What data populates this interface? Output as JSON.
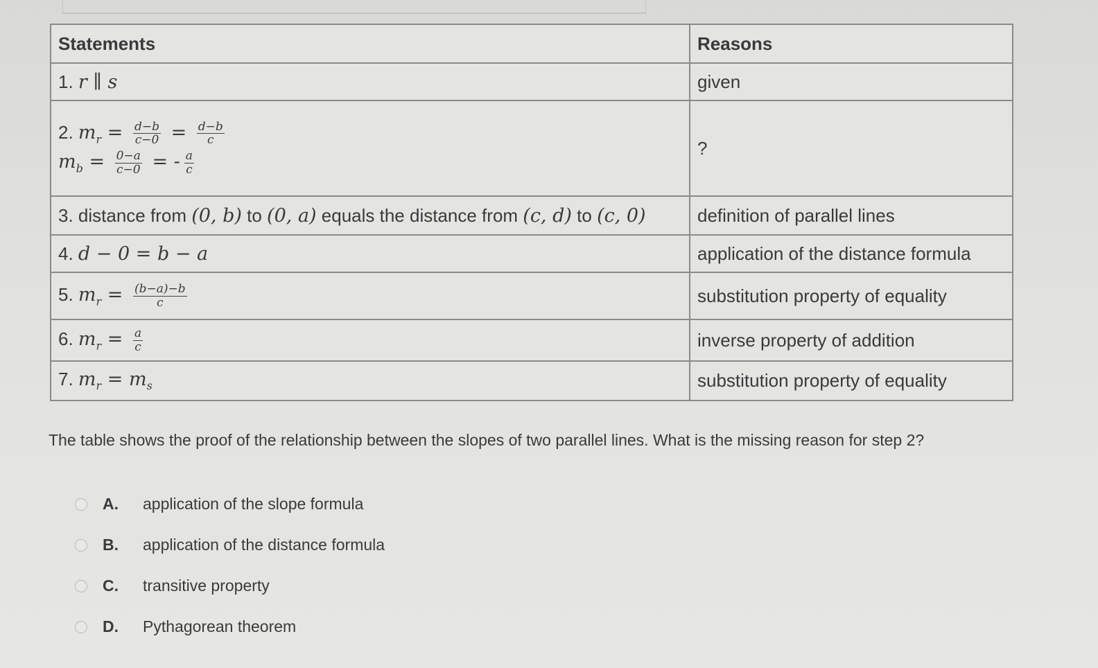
{
  "table": {
    "headers": {
      "statements": "Statements",
      "reasons": "Reasons"
    },
    "rows": [
      {
        "lines": [
          [
            {
              "t": "1. "
            },
            {
              "m": "r ∥ s"
            }
          ]
        ],
        "reason": "given"
      },
      {
        "lines": [
          [
            {
              "t": "2. "
            },
            {
              "m": "m"
            },
            {
              "sub": "r"
            },
            {
              "m": " = "
            },
            {
              "num": "d−b",
              "den": "c−0"
            },
            {
              "m": " = "
            },
            {
              "num": "d−b",
              "den": "c"
            }
          ],
          [
            {
              "m": "m"
            },
            {
              "sub": "b"
            },
            {
              "m": " = "
            },
            {
              "num": "0−a",
              "den": "c−0"
            },
            {
              "m": " = -"
            },
            {
              "num": "a",
              "den": "c"
            }
          ]
        ],
        "reason": "?"
      },
      {
        "lines": [
          [
            {
              "t": "3. distance from "
            },
            {
              "m": "(0, b)"
            },
            {
              "t": " to "
            },
            {
              "m": "(0, a)"
            },
            {
              "t": " equals the distance from "
            },
            {
              "m": "(c, d)"
            },
            {
              "t": " to "
            },
            {
              "m": "(c, 0)"
            }
          ]
        ],
        "reason": "definition of parallel lines"
      },
      {
        "lines": [
          [
            {
              "t": "4. "
            },
            {
              "m": "d − 0 = b − a"
            }
          ]
        ],
        "reason": "application of the distance formula"
      },
      {
        "lines": [
          [
            {
              "t": "5. "
            },
            {
              "m": "m"
            },
            {
              "sub": "r"
            },
            {
              "m": " = "
            },
            {
              "num": "(b−a)−b",
              "den": "c"
            }
          ]
        ],
        "reason": "substitution property of equality"
      },
      {
        "lines": [
          [
            {
              "t": "6. "
            },
            {
              "m": "m"
            },
            {
              "sub": "r"
            },
            {
              "m": " = "
            },
            {
              "num": "a",
              "den": "c"
            }
          ]
        ],
        "reason": "inverse property of addition"
      },
      {
        "lines": [
          [
            {
              "t": "7. "
            },
            {
              "m": "m"
            },
            {
              "sub": "r"
            },
            {
              "m": " = m"
            },
            {
              "sub": "s"
            }
          ]
        ],
        "reason": "substitution property of equality"
      }
    ]
  },
  "question": "The table shows the proof of the relationship between the slopes of two parallel lines. What is the missing reason for step 2?",
  "choices": [
    {
      "letter": "A.",
      "text": "application of the slope formula"
    },
    {
      "letter": "B.",
      "text": "application of the distance formula"
    },
    {
      "letter": "C.",
      "text": "transitive property"
    },
    {
      "letter": "D.",
      "text": "Pythagorean theorem"
    }
  ]
}
